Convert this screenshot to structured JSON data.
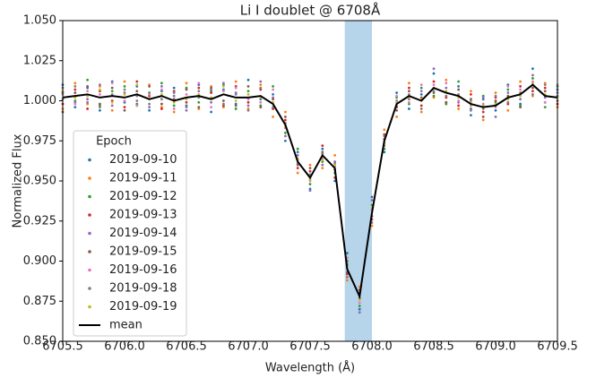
{
  "chart_data": {
    "type": "scatter",
    "title": "Li I doublet @ 6708Å",
    "xlabel": "Wavelength (Å)",
    "ylabel": "Normalized Flux",
    "legend_title": "Epoch",
    "legend": "lower left",
    "highlight": {
      "x": [
        6707.78,
        6708.0
      ],
      "color": "#b6d4ea"
    },
    "xlim": [
      6705.5,
      6709.5
    ],
    "ylim": [
      0.85,
      1.05
    ],
    "xticks": [
      6705.5,
      {
        "value": 6706,
        "label": "6706.0"
      },
      6706.5,
      {
        "value": 6707,
        "label": "6707.0"
      },
      6707.5,
      {
        "value": 6708,
        "label": "6708.0"
      },
      6708.5,
      {
        "value": 6709,
        "label": "6709.0"
      },
      6709.5
    ],
    "yticks": [
      {
        "value": 0.85,
        "label": "0.850"
      },
      {
        "value": 0.875,
        "label": "0.875"
      },
      {
        "value": 0.9,
        "label": "0.900"
      },
      {
        "value": 0.925,
        "label": "0.925"
      },
      {
        "value": 0.95,
        "label": "0.950"
      },
      {
        "value": 0.975,
        "label": "0.975"
      },
      {
        "value": 1.0,
        "label": "1.000"
      },
      {
        "value": 1.025,
        "label": "1.025"
      },
      {
        "value": 1.05,
        "label": "1.050"
      }
    ],
    "x": [
      6705.5,
      6705.6,
      6705.7,
      6705.8,
      6705.9,
      6706.0,
      6706.1,
      6706.2,
      6706.3,
      6706.4,
      6706.5,
      6706.6,
      6706.7,
      6706.8,
      6706.9,
      6707.0,
      6707.1,
      6707.2,
      6707.3,
      6707.4,
      6707.5,
      6707.6,
      6707.7,
      6707.8,
      6707.9,
      6708.0,
      6708.1,
      6708.2,
      6708.3,
      6708.4,
      6708.5,
      6708.6,
      6708.7,
      6708.8,
      6708.9,
      6709.0,
      6709.1,
      6709.2,
      6709.3,
      6709.4,
      6709.5
    ],
    "series": [
      {
        "name": "2019-09-10",
        "color": "#1f77b4",
        "mode": "markers",
        "values": [
          1.01,
          0.996,
          1.008,
          0.994,
          1.012,
          0.999,
          1.009,
          0.994,
          1.006,
          1.008,
          0.997,
          1.01,
          0.993,
          1.007,
          0.998,
          1.013,
          1.001,
          1.004,
          0.975,
          0.968,
          0.945,
          0.97,
          0.95,
          0.905,
          0.87,
          0.94,
          0.968,
          1.005,
          0.995,
          1.004,
          1.017,
          0.999,
          1.009,
          0.991,
          1.001,
          0.994,
          1.01,
          0.998,
          1.02,
          0.999,
          1.007
        ]
      },
      {
        "name": "2019-09-11",
        "color": "#ff7f0e",
        "mode": "markers",
        "values": [
          0.995,
          1.011,
          0.998,
          1.009,
          0.994,
          1.012,
          0.997,
          1.01,
          0.996,
          0.993,
          1.011,
          0.995,
          1.009,
          0.996,
          1.012,
          0.995,
          1.01,
          0.99,
          0.993,
          0.955,
          0.96,
          0.958,
          0.966,
          0.888,
          0.884,
          0.922,
          0.982,
          0.99,
          1.011,
          0.993,
          1.002,
          1.013,
          0.995,
          1.006,
          0.988,
          1.005,
          0.994,
          1.012,
          1.003,
          1.011,
          0.996
        ]
      },
      {
        "name": "2019-09-12",
        "color": "#2ca02c",
        "mode": "markers",
        "values": [
          1.005,
          1.0,
          1.013,
          0.997,
          1.006,
          1.009,
          0.998,
          1.005,
          1.011,
          0.997,
          1.008,
          0.999,
          1.006,
          1.01,
          0.995,
          1.006,
          0.997,
          1.009,
          0.98,
          0.97,
          0.948,
          0.962,
          0.955,
          0.9,
          0.872,
          0.935,
          0.97,
          1.002,
          0.998,
          1.008,
          1.003,
          0.998,
          1.012,
          0.995,
          1.003,
          0.999,
          1.007,
          0.997,
          1.014,
          0.996,
          1.009
        ]
      },
      {
        "name": "2019-09-13",
        "color": "#d62728",
        "mode": "markers",
        "values": [
          0.998,
          1.007,
          0.995,
          1.006,
          1.0,
          0.996,
          1.012,
          1.003,
          0.995,
          1.006,
          0.999,
          1.008,
          1.005,
          0.997,
          1.009,
          0.999,
          1.007,
          0.995,
          0.988,
          0.958,
          0.956,
          0.972,
          0.952,
          0.892,
          0.88,
          0.926,
          0.979,
          0.996,
          1.008,
          0.997,
          1.012,
          1.002,
          0.997,
          1.004,
          0.993,
          1.002,
          0.998,
          1.009,
          1.006,
          1.008,
          0.998
        ]
      },
      {
        "name": "2019-09-14",
        "color": "#9467bd",
        "mode": "markers",
        "values": [
          1.008,
          0.999,
          1.001,
          1.01,
          0.997,
          1.005,
          1.0,
          0.996,
          1.009,
          1.003,
          0.994,
          1.006,
          0.999,
          1.011,
          1.004,
          0.997,
          1.012,
          1.002,
          0.978,
          0.966,
          0.944,
          0.96,
          0.962,
          0.898,
          0.868,
          0.938,
          0.972,
          1.0,
          1.001,
          1.006,
          1.02,
          1.008,
          0.999,
          0.994,
          1.002,
          0.99,
          1.005,
          1.001,
          1.016,
          1.002,
          1.005
        ]
      },
      {
        "name": "2019-09-15",
        "color": "#8c564b",
        "mode": "markers",
        "values": [
          0.993,
          1.005,
          1.009,
          0.998,
          1.008,
          0.994,
          1.006,
          1.009,
          0.998,
          1.001,
          1.007,
          0.996,
          1.008,
          1.0,
          0.997,
          1.009,
          0.996,
          1.001,
          0.99,
          0.96,
          0.958,
          0.968,
          0.957,
          0.893,
          0.882,
          0.928,
          0.976,
          0.994,
          1.006,
          1.002,
          1.005,
          0.999,
          1.007,
          1.001,
          0.99,
          1.0,
          1.003,
          0.996,
          1.008,
          1.006,
          1.0
        ]
      },
      {
        "name": "2019-09-16",
        "color": "#e377c2",
        "mode": "markers",
        "values": [
          1.004,
          0.998,
          1.006,
          1.004,
          1.011,
          1.0,
          0.997,
          1.004,
          1.007,
          0.995,
          1.004,
          1.011,
          0.996,
          1.006,
          1.008,
          1.001,
          0.999,
          1.007,
          0.983,
          0.963,
          0.95,
          0.964,
          0.959,
          0.902,
          0.874,
          0.932,
          0.974,
          1.003,
          0.999,
          1.01,
          1.01,
          1.011,
          1.0,
          0.997,
          0.998,
          0.996,
          1.009,
          1.007,
          1.012,
          0.999,
          1.01
        ]
      },
      {
        "name": "2019-09-18",
        "color": "#7f7f7f",
        "mode": "markers",
        "values": [
          1.001,
          1.009,
          0.999,
          0.996,
          1.004,
          1.007,
          1.003,
          0.998,
          1.001,
          1.005,
          0.996,
          1.002,
          1.007,
          0.998,
          1.005,
          0.994,
          1.008,
          0.996,
          0.986,
          0.961,
          0.954,
          0.967,
          0.961,
          0.89,
          0.877,
          0.924,
          0.978,
          0.997,
          1.004,
          0.995,
          1.006,
          1.003,
          1.004,
          1.0,
          0.995,
          1.003,
          0.999,
          1.005,
          1.004,
          1.01,
          1.003
        ]
      },
      {
        "name": "2019-09-19",
        "color": "#bcbd22",
        "mode": "markers",
        "values": [
          1.006,
          1.002,
          1.003,
          1.007,
          0.999,
          1.004,
          1.01,
          1.001,
          1.004,
          0.999,
          1.001,
          1.004,
          1.002,
          1.009,
          1.0,
          1.004,
          1.002,
          0.999,
          0.984,
          0.964,
          0.951,
          0.963,
          0.96,
          0.897,
          0.876,
          0.933,
          0.973,
          0.999,
          1.002,
          1.001,
          1.008,
          1.006,
          1.002,
          0.999,
          0.997,
          0.998,
          1.001,
          1.003,
          1.011,
          1.004,
          1.002
        ]
      },
      {
        "name": "mean",
        "color": "#000000",
        "mode": "line",
        "values": [
          1.002,
          1.003,
          1.004,
          1.002,
          1.003,
          1.002,
          1.004,
          1.001,
          1.003,
          1.0,
          1.002,
          1.003,
          1.001,
          1.004,
          1.002,
          1.002,
          1.003,
          0.998,
          0.985,
          0.962,
          0.952,
          0.966,
          0.958,
          0.895,
          0.878,
          0.93,
          0.975,
          0.998,
          1.003,
          1.0,
          1.008,
          1.005,
          1.003,
          0.998,
          0.996,
          0.997,
          1.002,
          1.004,
          1.01,
          1.003,
          1.002
        ]
      }
    ]
  }
}
